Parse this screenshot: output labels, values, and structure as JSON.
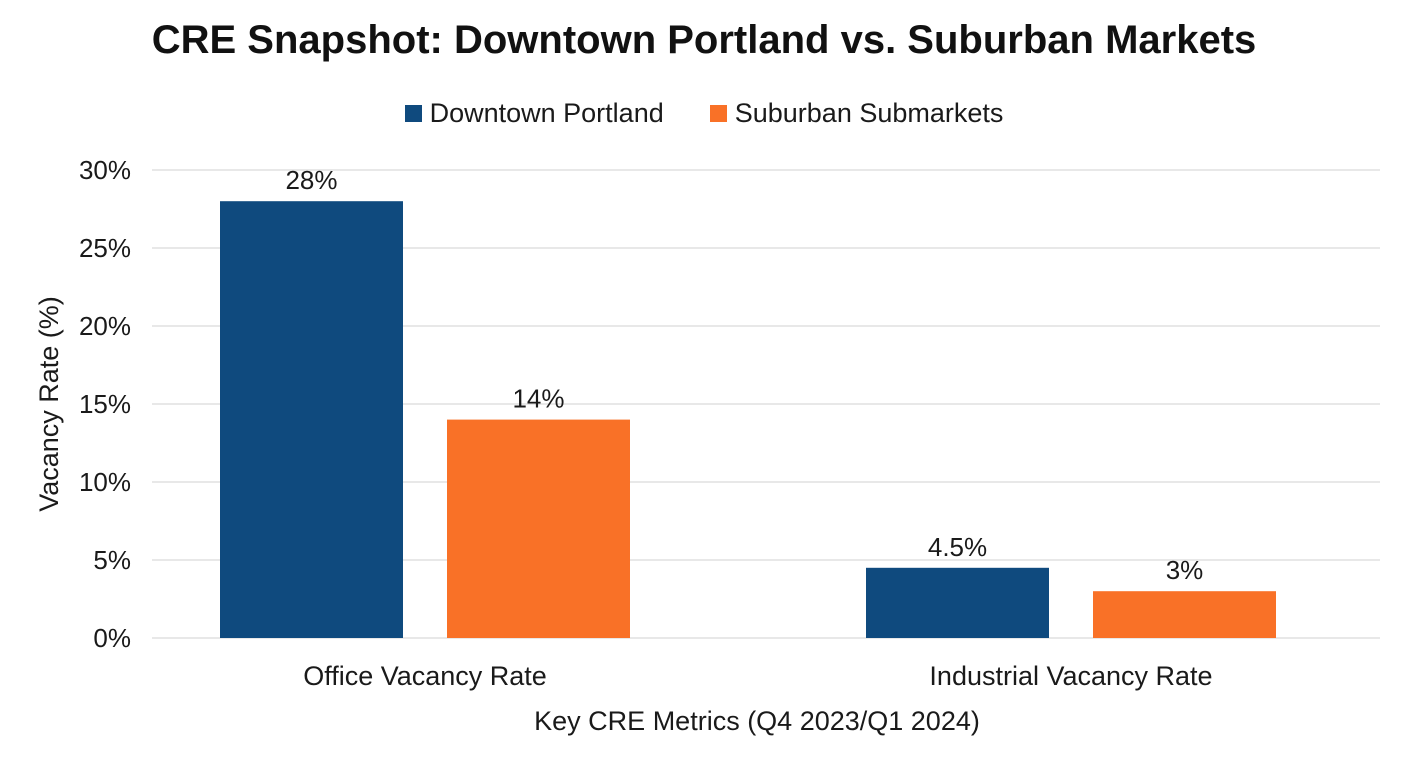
{
  "chart_data": {
    "type": "bar",
    "title": "CRE Snapshot: Downtown Portland vs. Suburban Markets",
    "xlabel": "Key CRE Metrics (Q4 2023/Q1 2024)",
    "ylabel": "Vacancy Rate (%)",
    "categories": [
      "Office Vacancy Rate",
      "Industrial Vacancy Rate"
    ],
    "series": [
      {
        "name": "Downtown Portland",
        "values": [
          28,
          4.5
        ],
        "labels": [
          "28%",
          "4.5%"
        ],
        "color": "#0f4a7e"
      },
      {
        "name": "Suburban Submarkets",
        "values": [
          14,
          3
        ],
        "labels": [
          "14%",
          "3%"
        ],
        "color": "#f97127"
      }
    ],
    "ylim": [
      0,
      30
    ],
    "yticks": [
      0,
      5,
      10,
      15,
      20,
      25,
      30
    ],
    "ytick_labels": [
      "0%",
      "5%",
      "10%",
      "15%",
      "20%",
      "25%",
      "30%"
    ],
    "grid": true,
    "legend_position": "top-center"
  }
}
